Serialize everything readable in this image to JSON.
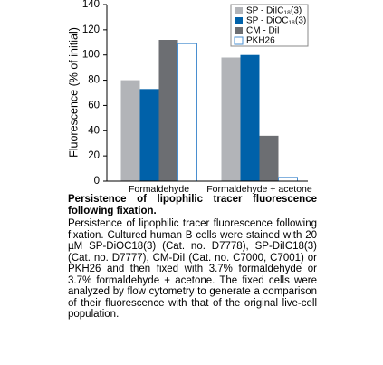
{
  "chart_data": {
    "type": "bar",
    "y_label": "Fluorescence (% of initial)",
    "categories": [
      "Formaldehyde",
      "Formaldehyde + acetone"
    ],
    "series": [
      {
        "name": "SP -  DiIC₁₈(3)",
        "color": "#b2b4b8",
        "values": [
          80,
          98
        ]
      },
      {
        "name": "SP -  DiOC₁₈(3)",
        "color": "#0061a9",
        "values": [
          73,
          100
        ]
      },
      {
        "name": "CM - DiI",
        "color": "#6c6e72",
        "values": [
          112,
          36
        ]
      },
      {
        "name": "PKH26",
        "color": "#ffffff",
        "values": [
          109,
          3
        ]
      }
    ],
    "ylim": [
      0,
      140
    ],
    "yticks": [
      0,
      20,
      40,
      60,
      80,
      100,
      120,
      140
    ],
    "grid": false,
    "legend": "top-right"
  },
  "caption": {
    "title": "Persistence of lipophilic tracer fluorescence following fixation.",
    "text": "Persistence of lipophilic tracer fluorescence following fixation. Cultured human B cells were stained with 20 µM SP-DiOC18(3) (Cat. no. D7778), SP-DiIC18(3) (Cat. no. D7777), CM-DiI (Cat. no. C7000, C7001) or PKH26 and then fixed with 3.7% formaldehyde or 3.7% formaldehyde + acetone. The fixed cells were analyzed by flow cytometry to generate a comparison of their fluorescence with that of the original live-cell population."
  }
}
